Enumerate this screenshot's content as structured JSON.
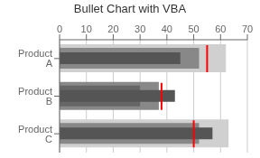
{
  "chart_data": {
    "type": "bar",
    "orientation": "horizontal",
    "title": "Bullet Chart with VBA",
    "categories": [
      "Product A",
      "Product B",
      "Product C"
    ],
    "series": [
      {
        "values": [
          62,
          37,
          63
        ],
        "colors": [
          "#d0d0d0",
          "#888888",
          "#d0d0d0"
        ]
      },
      {
        "values": [
          52,
          30,
          52
        ],
        "colors": [
          "#888888",
          "#666666",
          "#888888"
        ]
      },
      {
        "values": [
          45,
          43,
          57
        ],
        "colors": [
          "#555555",
          "#555555",
          "#555555"
        ]
      },
      {
        "type": "target",
        "color": "#ff0000",
        "values": [
          55,
          38,
          50
        ]
      }
    ],
    "xlim": [
      0,
      70
    ],
    "xticks": [
      0,
      10,
      20,
      30,
      40,
      50,
      60,
      70
    ],
    "grid": true
  }
}
